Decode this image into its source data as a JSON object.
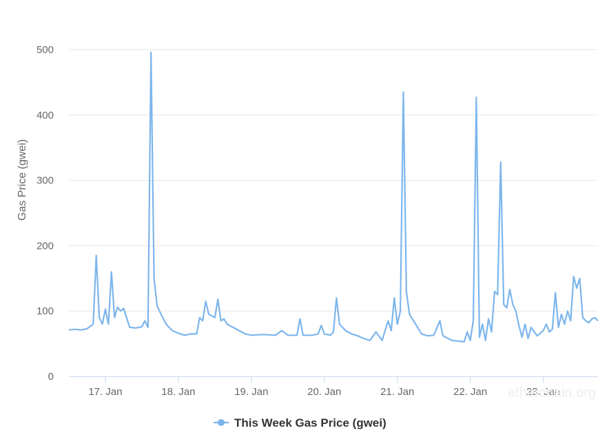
{
  "chart_data": {
    "type": "line",
    "ylabel": "Gas Price (gwei)",
    "ylim": [
      0,
      500
    ],
    "yticks": [
      0,
      100,
      200,
      300,
      400,
      500
    ],
    "xlim": [
      "2019-01-16T12:00",
      "2019-01-23T18:00"
    ],
    "xticks": [
      {
        "label": "17. Jan",
        "t": "2019-01-17T00:00"
      },
      {
        "label": "18. Jan",
        "t": "2019-01-18T00:00"
      },
      {
        "label": "19. Jan",
        "t": "2019-01-19T00:00"
      },
      {
        "label": "20. Jan",
        "t": "2019-01-20T00:00"
      },
      {
        "label": "21. Jan",
        "t": "2019-01-21T00:00"
      },
      {
        "label": "22. Jan",
        "t": "2019-01-22T00:00"
      },
      {
        "label": "23. Jan",
        "t": "2019-01-23T00:00"
      }
    ],
    "grid": true,
    "legend_position": "bottom-center",
    "series": [
      {
        "name": "This Week Gas Price (gwei)",
        "color": "#7cb5ec",
        "points": [
          [
            "2019-01-16T12:00",
            71
          ],
          [
            "2019-01-16T14:00",
            72
          ],
          [
            "2019-01-16T16:00",
            71
          ],
          [
            "2019-01-16T18:00",
            73
          ],
          [
            "2019-01-16T20:00",
            80
          ],
          [
            "2019-01-16T21:00",
            185
          ],
          [
            "2019-01-16T22:00",
            90
          ],
          [
            "2019-01-16T23:00",
            80
          ],
          [
            "2019-01-17T00:00",
            103
          ],
          [
            "2019-01-17T01:00",
            80
          ],
          [
            "2019-01-17T02:00",
            160
          ],
          [
            "2019-01-17T03:00",
            90
          ],
          [
            "2019-01-17T04:00",
            106
          ],
          [
            "2019-01-17T05:00",
            100
          ],
          [
            "2019-01-17T06:00",
            104
          ],
          [
            "2019-01-17T08:00",
            75
          ],
          [
            "2019-01-17T10:00",
            74
          ],
          [
            "2019-01-17T12:00",
            76
          ],
          [
            "2019-01-17T13:00",
            85
          ],
          [
            "2019-01-17T14:00",
            75
          ],
          [
            "2019-01-17T15:00",
            496
          ],
          [
            "2019-01-17T16:00",
            150
          ],
          [
            "2019-01-17T17:00",
            108
          ],
          [
            "2019-01-17T18:00",
            98
          ],
          [
            "2019-01-17T20:00",
            80
          ],
          [
            "2019-01-17T22:00",
            70
          ],
          [
            "2019-01-18T00:00",
            66
          ],
          [
            "2019-01-18T02:00",
            63
          ],
          [
            "2019-01-18T04:00",
            65
          ],
          [
            "2019-01-18T06:00",
            65
          ],
          [
            "2019-01-18T07:00",
            90
          ],
          [
            "2019-01-18T08:00",
            85
          ],
          [
            "2019-01-18T09:00",
            115
          ],
          [
            "2019-01-18T10:00",
            95
          ],
          [
            "2019-01-18T12:00",
            90
          ],
          [
            "2019-01-18T13:00",
            118
          ],
          [
            "2019-01-18T14:00",
            85
          ],
          [
            "2019-01-18T15:00",
            88
          ],
          [
            "2019-01-18T16:00",
            80
          ],
          [
            "2019-01-18T18:00",
            75
          ],
          [
            "2019-01-18T20:00",
            70
          ],
          [
            "2019-01-18T22:00",
            65
          ],
          [
            "2019-01-19T00:00",
            63
          ],
          [
            "2019-01-19T04:00",
            64
          ],
          [
            "2019-01-19T08:00",
            63
          ],
          [
            "2019-01-19T10:00",
            70
          ],
          [
            "2019-01-19T12:00",
            63
          ],
          [
            "2019-01-19T15:00",
            63
          ],
          [
            "2019-01-19T16:00",
            88
          ],
          [
            "2019-01-19T17:00",
            63
          ],
          [
            "2019-01-19T20:00",
            63
          ],
          [
            "2019-01-19T22:00",
            65
          ],
          [
            "2019-01-19T23:00",
            78
          ],
          [
            "2019-01-20T00:00",
            65
          ],
          [
            "2019-01-20T02:00",
            63
          ],
          [
            "2019-01-20T03:00",
            68
          ],
          [
            "2019-01-20T04:00",
            120
          ],
          [
            "2019-01-20T05:00",
            80
          ],
          [
            "2019-01-20T07:00",
            70
          ],
          [
            "2019-01-20T09:00",
            65
          ],
          [
            "2019-01-20T11:00",
            62
          ],
          [
            "2019-01-20T13:00",
            58
          ],
          [
            "2019-01-20T15:00",
            55
          ],
          [
            "2019-01-20T17:00",
            68
          ],
          [
            "2019-01-20T19:00",
            55
          ],
          [
            "2019-01-20T21:00",
            85
          ],
          [
            "2019-01-20T22:00",
            70
          ],
          [
            "2019-01-20T23:00",
            120
          ],
          [
            "2019-01-21T00:00",
            80
          ],
          [
            "2019-01-21T01:00",
            100
          ],
          [
            "2019-01-21T02:00",
            435
          ],
          [
            "2019-01-21T03:00",
            130
          ],
          [
            "2019-01-21T04:00",
            95
          ],
          [
            "2019-01-21T06:00",
            80
          ],
          [
            "2019-01-21T08:00",
            65
          ],
          [
            "2019-01-21T10:00",
            62
          ],
          [
            "2019-01-21T12:00",
            63
          ],
          [
            "2019-01-21T14:00",
            85
          ],
          [
            "2019-01-21T15:00",
            62
          ],
          [
            "2019-01-21T18:00",
            55
          ],
          [
            "2019-01-21T22:00",
            53
          ],
          [
            "2019-01-21T23:00",
            68
          ],
          [
            "2019-01-22T00:00",
            55
          ],
          [
            "2019-01-22T01:00",
            85
          ],
          [
            "2019-01-22T02:00",
            427
          ],
          [
            "2019-01-22T03:00",
            60
          ],
          [
            "2019-01-22T04:00",
            80
          ],
          [
            "2019-01-22T05:00",
            55
          ],
          [
            "2019-01-22T06:00",
            88
          ],
          [
            "2019-01-22T07:00",
            68
          ],
          [
            "2019-01-22T08:00",
            130
          ],
          [
            "2019-01-22T09:00",
            125
          ],
          [
            "2019-01-22T10:00",
            328
          ],
          [
            "2019-01-22T11:00",
            110
          ],
          [
            "2019-01-22T12:00",
            105
          ],
          [
            "2019-01-22T13:00",
            133
          ],
          [
            "2019-01-22T14:00",
            110
          ],
          [
            "2019-01-22T15:00",
            100
          ],
          [
            "2019-01-22T16:00",
            78
          ],
          [
            "2019-01-22T17:00",
            60
          ],
          [
            "2019-01-22T18:00",
            80
          ],
          [
            "2019-01-22T19:00",
            58
          ],
          [
            "2019-01-22T20:00",
            75
          ],
          [
            "2019-01-22T22:00",
            62
          ],
          [
            "2019-01-23T00:00",
            70
          ],
          [
            "2019-01-23T01:00",
            80
          ],
          [
            "2019-01-23T02:00",
            68
          ],
          [
            "2019-01-23T03:00",
            72
          ],
          [
            "2019-01-23T04:00",
            128
          ],
          [
            "2019-01-23T05:00",
            75
          ],
          [
            "2019-01-23T06:00",
            95
          ],
          [
            "2019-01-23T07:00",
            80
          ],
          [
            "2019-01-23T08:00",
            100
          ],
          [
            "2019-01-23T09:00",
            85
          ],
          [
            "2019-01-23T10:00",
            153
          ],
          [
            "2019-01-23T11:00",
            135
          ],
          [
            "2019-01-23T12:00",
            150
          ],
          [
            "2019-01-23T13:00",
            90
          ],
          [
            "2019-01-23T14:00",
            85
          ],
          [
            "2019-01-23T15:00",
            82
          ],
          [
            "2019-01-23T16:00",
            88
          ],
          [
            "2019-01-23T17:00",
            90
          ],
          [
            "2019-01-23T18:00",
            85
          ]
        ]
      }
    ]
  }
}
